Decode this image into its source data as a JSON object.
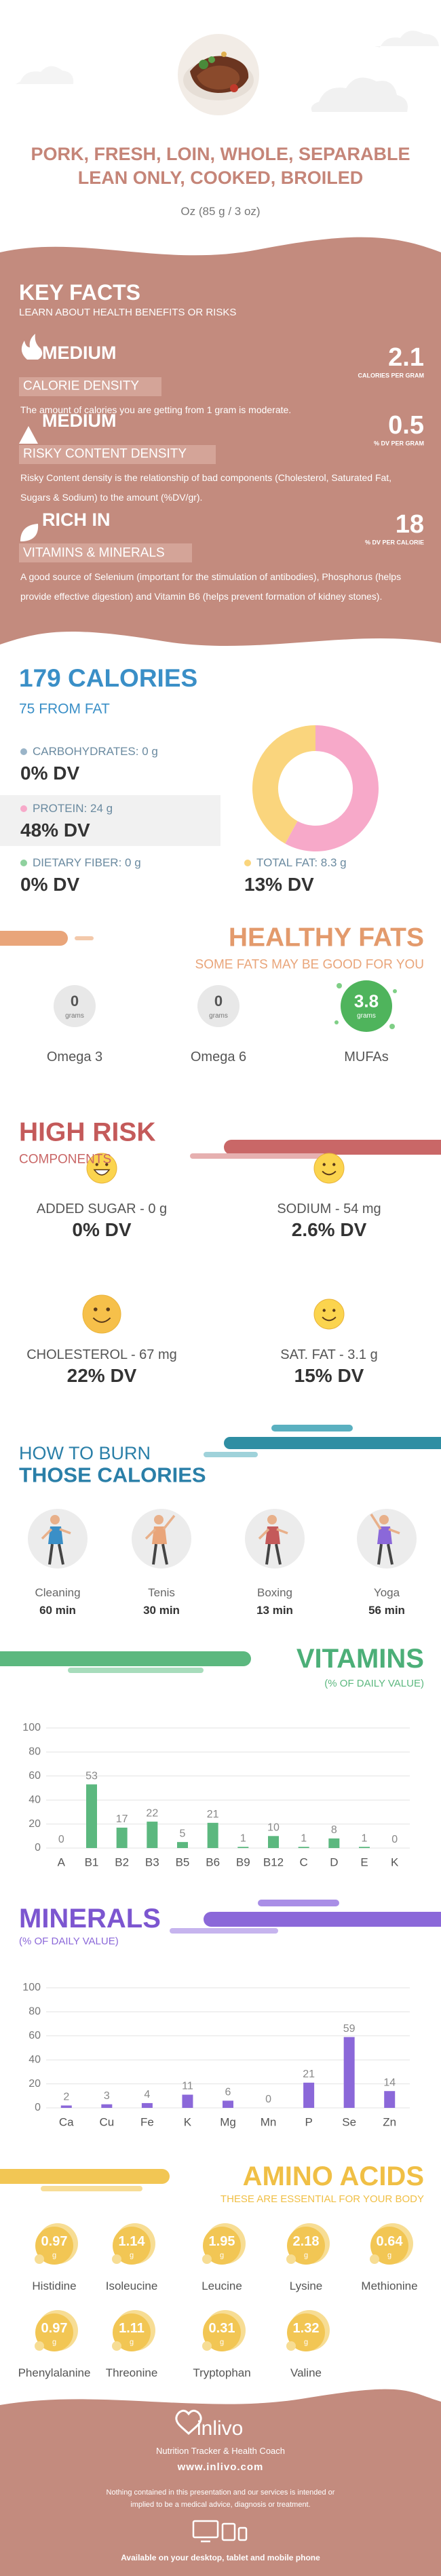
{
  "header": {
    "title": "PORK, FRESH, LOIN, WHOLE, SEPARABLE LEAN ONLY, COOKED, BROILED",
    "serving": "Oz (85 g / 3 oz)"
  },
  "key_facts": {
    "title": "KEY FACTS",
    "subtitle": "LEARN ABOUT HEALTH BENEFITS OR RISKS",
    "facts": [
      {
        "level": "MEDIUM",
        "label": "CALORIE DENSITY",
        "value": 2.1,
        "unit": "CALORIES PER GRAM",
        "description": "The amount of calories you are getting from 1 gram is moderate."
      },
      {
        "level": "MEDIUM",
        "label": "RISKY CONTENT DENSITY",
        "value": 0.5,
        "unit": "% DV PER GRAM",
        "description": "Risky Content density is the relationship of bad components (Cholesterol, Saturated Fat, Sugars & Sodium) to the amount (%DV/gr)."
      },
      {
        "level": "RICH  IN",
        "label": "VITAMINS & MINERALS",
        "value": 18,
        "unit": "% DV PER CALORIE",
        "description": "A good source of Selenium (important for the stimulation of antibodies), Phosphorus (helps provide effective digestion) and Vitamin B6 (helps prevent formation of kidney stones)."
      }
    ]
  },
  "calories": {
    "title": "179 CALORIES",
    "subtitle": "75 FROM FAT",
    "nutrients": [
      {
        "label": "CARBOHYDRATES: 0 g",
        "dv": "0% DV"
      },
      {
        "label": "PROTEIN: 24 g",
        "dv": "48% DV"
      },
      {
        "label": "DIETARY FIBER: 0 g",
        "dv": "0% DV"
      },
      {
        "label": "TOTAL FAT: 8.3 g",
        "dv": "13% DV"
      }
    ],
    "donut": [
      {
        "color": "#f7a9c9",
        "value": 58
      },
      {
        "color": "#fad57d",
        "value": 42
      }
    ]
  },
  "healthy_fats": {
    "title": "HEALTHY FATS",
    "subtitle": "SOME FATS MAY BE GOOD FOR YOU",
    "unit": "grams",
    "items": [
      {
        "value": 0,
        "name": "Omega 3"
      },
      {
        "value": 0,
        "name": "Omega 6"
      },
      {
        "value": 3.8,
        "name": "MUFAs"
      }
    ]
  },
  "high_risk": {
    "title": "HIGH RISK",
    "subtitle": "COMPONENTS",
    "items": [
      {
        "name": "ADDED SUGAR - 0 g",
        "dv": "0% DV"
      },
      {
        "name": "SODIUM - 54 mg",
        "dv": "2.6% DV"
      },
      {
        "name": "CHOLESTEROL - 67 mg",
        "dv": "22% DV"
      },
      {
        "name": "SAT. FAT - 3.1 g",
        "dv": "15% DV"
      }
    ]
  },
  "burn": {
    "title": "HOW TO BURN",
    "subtitle": "THOSE CALORIES",
    "activities": [
      {
        "name": "Cleaning",
        "time": "60 min"
      },
      {
        "name": "Tenis",
        "time": "30 min"
      },
      {
        "name": "Boxing",
        "time": "13 min"
      },
      {
        "name": "Yoga",
        "time": "56 min"
      }
    ]
  },
  "vitamins": {
    "title": "VITAMINS",
    "subtitle": "(% OF DAILY VALUE)",
    "categories": [
      "A",
      "B1",
      "B2",
      "B3",
      "B5",
      "B6",
      "B9",
      "B12",
      "C",
      "D",
      "E",
      "K"
    ],
    "values": [
      0,
      53,
      17,
      22,
      5,
      21,
      1,
      10,
      1,
      8,
      1,
      0
    ],
    "ylim": [
      0,
      100
    ],
    "yticks": [
      0,
      20,
      40,
      60,
      80,
      100
    ],
    "color": "#5cb87f"
  },
  "minerals": {
    "title": "MINERALS",
    "subtitle": "(% OF DAILY VALUE)",
    "categories": [
      "Ca",
      "Cu",
      "Fe",
      "K",
      "Mg",
      "Mn",
      "P",
      "Se",
      "Zn"
    ],
    "values": [
      2,
      3,
      4,
      11,
      6,
      0,
      21,
      59,
      14
    ],
    "ylim": [
      0,
      100
    ],
    "yticks": [
      0,
      20,
      40,
      60,
      80,
      100
    ],
    "color": "#8b68d9"
  },
  "amino_acids": {
    "title": "AMINO ACIDS",
    "subtitle": "THESE ARE ESSENTIAL FOR YOUR BODY",
    "unit": "g",
    "items": [
      {
        "name": "Histidine",
        "value": 0.97
      },
      {
        "name": "Isoleucine",
        "value": 1.14
      },
      {
        "name": "Leucine",
        "value": 1.95
      },
      {
        "name": "Lysine",
        "value": 2.18
      },
      {
        "name": "Methionine",
        "value": 0.64
      },
      {
        "name": "Phenylalanine",
        "value": 0.97
      },
      {
        "name": "Threonine",
        "value": 1.11
      },
      {
        "name": "Tryptophan",
        "value": 0.31
      },
      {
        "name": "Valine",
        "value": 1.32
      }
    ]
  },
  "footer": {
    "brand": "inlivo",
    "tagline": "Nutrition Tracker & Health Coach",
    "url": "www.inlivo.com",
    "disclaimer": "Nothing contained in this presentation and our services is intended or implied to be a medical advice, diagnosis or treatment.",
    "available": "Available on your desktop, tablet and mobile phone"
  }
}
